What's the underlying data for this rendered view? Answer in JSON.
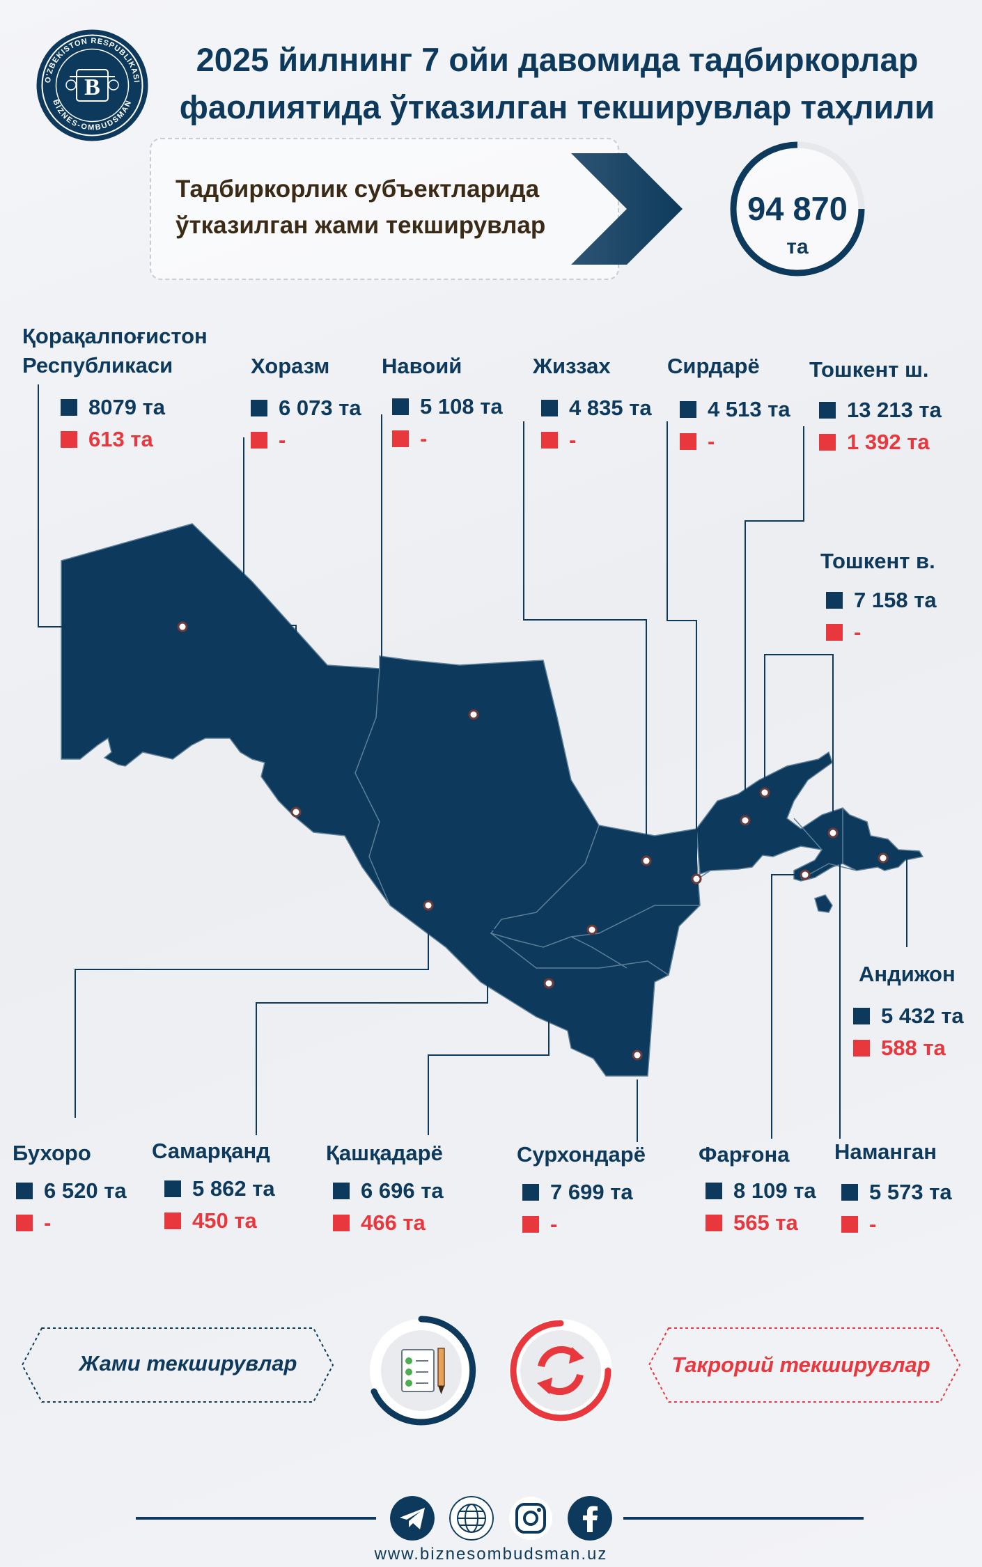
{
  "header": {
    "title_line1": "2025 йилнинг 7 ойи давомида тадбиркорлар",
    "title_line2": "фаолиятида ўтказилган текширувлар таҳлили",
    "logo_ring_text": "O'ZBEKISTON RESPUBLIKASI · BIZNES-OMBUDSMAN",
    "logo_letter": "B"
  },
  "summary": {
    "label_line1": "Тадбиркорлик субъектларида",
    "label_line2": "ўтказилган жами текширувлар",
    "total_value": "94 870",
    "total_unit": "та"
  },
  "regions": {
    "karakalpakstan": {
      "name_line1": "Қорақалпоғистон",
      "name_line2": "Республикаси",
      "total": "8079 та",
      "repeat": "613 та"
    },
    "khorezm": {
      "name": "Хоразм",
      "total": "6 073 та",
      "repeat": "-"
    },
    "navoi": {
      "name": "Навоий",
      "total": "5 108 та",
      "repeat": "-"
    },
    "jizzakh": {
      "name": "Жиззах",
      "total": "4 835 та",
      "repeat": "-"
    },
    "syrdarya": {
      "name": "Сирдарё",
      "total": "4 513 та",
      "repeat": "-"
    },
    "tashkent_city": {
      "name": "Тошкент ш.",
      "total": "13 213 та",
      "repeat": "1 392 та"
    },
    "tashkent_region": {
      "name": "Тошкент в.",
      "total": "7 158 та",
      "repeat": "-"
    },
    "andijan": {
      "name": "Андижон",
      "total": "5 432 та",
      "repeat": "588 та"
    },
    "bukhara": {
      "name": "Бухоро",
      "total": "6 520 та",
      "repeat": "-"
    },
    "samarkand": {
      "name": "Самарқанд",
      "total": "5 862 та",
      "repeat": "450 та"
    },
    "kashkadarya": {
      "name": "Қашқадарё",
      "total": "6 696 та",
      "repeat": "466 та"
    },
    "surkhandarya": {
      "name": "Сурхондарё",
      "total": "7 699 та",
      "repeat": "-"
    },
    "fergana": {
      "name": "Фарғона",
      "total": "8 109 та",
      "repeat": "565 та"
    },
    "namangan": {
      "name": "Наманган",
      "total": "5 573 та",
      "repeat": "-"
    }
  },
  "legend": {
    "total_label": "Жами текширувлар",
    "repeat_label": "Такрорий текширувлар"
  },
  "colors": {
    "primary": "#0d3a5c",
    "accent_red": "#e8383d",
    "heading_brown": "#3b2b16"
  },
  "icons": {
    "telegram": "telegram-icon",
    "web": "globe-icon",
    "instagram": "instagram-icon",
    "facebook": "facebook-icon"
  },
  "footer": {
    "website": "www.biznesombudsman.uz"
  }
}
